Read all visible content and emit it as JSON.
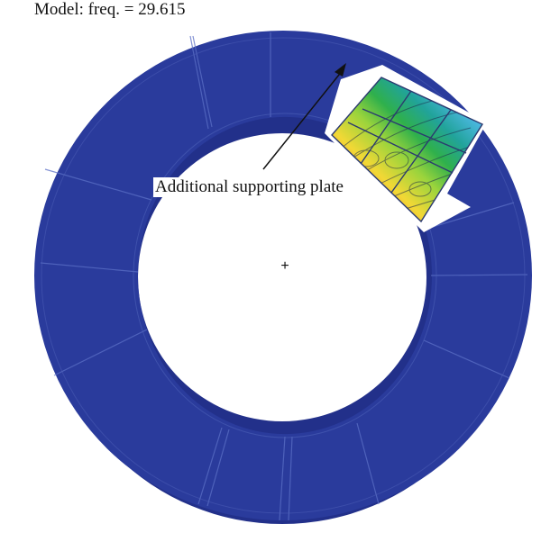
{
  "figure": {
    "title": "Model: freq. = 29.615",
    "annotation": "Additional supporting plate",
    "center_marker": "+",
    "colors": {
      "ring": "#2a3b9c",
      "ring_dark": "#22308a",
      "ring_line": "#5b6fc6",
      "background": "#ffffff",
      "contour_scale": [
        "#d2262c",
        "#f08a2a",
        "#f2d835",
        "#9ad43c",
        "#2fb04c",
        "#21a39a",
        "#4fb9e6",
        "#9fd7f2"
      ]
    }
  }
}
